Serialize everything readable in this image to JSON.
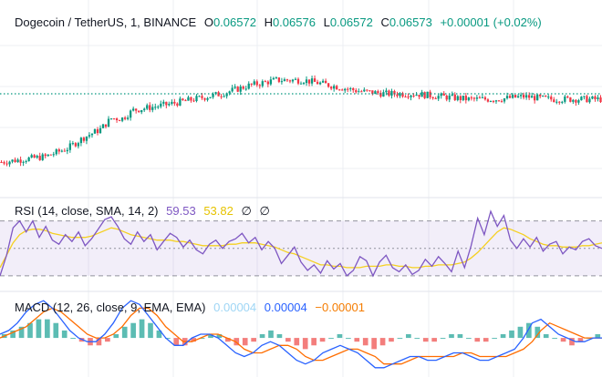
{
  "colors": {
    "up": "#089981",
    "down": "#f23645",
    "rsi": "#7e57c2",
    "rsi_ma": "#f5d020",
    "rsi_band": "#7e57c2",
    "macd": "#2962ff",
    "signal": "#ff6d00",
    "hist_up": "#26a69a",
    "hist_down": "#ef5350",
    "grid": "#eceff3",
    "price_line": "#089981"
  },
  "main_legend": {
    "symbol": "Dogecoin / TetherUS, 1, BINANCE",
    "o_label": "O",
    "o_value": "0.06572",
    "h_label": "H",
    "h_value": "0.06576",
    "l_label": "L",
    "l_value": "0.06572",
    "c_label": "C",
    "c_value": "0.06573",
    "change": "+0.00001 (+0.02%)"
  },
  "rsi_legend": {
    "label": "RSI (14, close, SMA, 14, 2)",
    "rsi_value": "59.53",
    "ma_value": "53.82",
    "v3": "∅",
    "v4": "∅"
  },
  "macd_legend": {
    "label": "MACD (12, 26, close, 9, EMA, EMA)",
    "histogram": "0.00004",
    "macd": "0.00004",
    "signal": "−0.00001"
  },
  "chart_data": [
    {
      "type": "candlestick",
      "series": [
        {
          "name": "Dogecoin / TetherUS",
          "trend": [
            [
              0,
              0.06548
            ],
            [
              8,
              0.06549
            ],
            [
              16,
              0.0655
            ],
            [
              24,
              0.06553
            ],
            [
              30,
              0.06557
            ],
            [
              36,
              0.0656
            ],
            [
              40,
              0.06564
            ],
            [
              44,
              0.06564
            ],
            [
              48,
              0.06567
            ],
            [
              54,
              0.06568
            ],
            [
              60,
              0.06569
            ],
            [
              70,
              0.06571
            ],
            [
              80,
              0.06573
            ],
            [
              90,
              0.06576
            ],
            [
              100,
              0.06578
            ],
            [
              110,
              0.06578
            ],
            [
              120,
              0.06576
            ],
            [
              130,
              0.06574
            ],
            [
              140,
              0.06573
            ],
            [
              150,
              0.06573
            ],
            [
              160,
              0.06572
            ],
            [
              170,
              0.06571
            ],
            [
              180,
              0.06571
            ],
            [
              190,
              0.06572
            ],
            [
              200,
              0.06571
            ],
            [
              210,
              0.06571
            ],
            [
              218,
              0.06571
            ]
          ]
        }
      ],
      "current_price": 0.06573,
      "x_range": [
        0,
        218
      ],
      "y_range": [
        0.06536,
        0.06604
      ],
      "grid": true
    },
    {
      "type": "line",
      "title": "RSI (14, close, SMA, 14, 2)",
      "series": [
        {
          "name": "RSI",
          "values": [
            30,
            45,
            65,
            70,
            62,
            70,
            58,
            66,
            56,
            53,
            60,
            55,
            62,
            52,
            57,
            64,
            71,
            73,
            66,
            57,
            53,
            62,
            55,
            60,
            49,
            55,
            61,
            58,
            51,
            56,
            49,
            46,
            53,
            56,
            50,
            55,
            57,
            61,
            54,
            58,
            49,
            55,
            50,
            39,
            45,
            51,
            40,
            34,
            38,
            32,
            41,
            35,
            39,
            30,
            34,
            44,
            41,
            30,
            40,
            45,
            36,
            33,
            38,
            31,
            34,
            42,
            37,
            44,
            39,
            33,
            48,
            36,
            52,
            72,
            60,
            77,
            66,
            74,
            56,
            50,
            57,
            51,
            58,
            48,
            53,
            55,
            46,
            51,
            49,
            55,
            57,
            52,
            50
          ]
        },
        {
          "name": "RSI-based MA",
          "values": [
            36,
            45,
            54,
            60,
            63,
            64,
            64,
            63,
            61,
            60,
            59,
            58,
            58,
            58,
            59,
            61,
            63,
            65,
            64,
            62,
            60,
            59,
            58,
            57,
            56,
            56,
            56,
            55,
            55,
            54,
            53,
            52,
            52,
            52,
            52,
            53,
            53,
            54,
            54,
            54,
            53,
            52,
            51,
            49,
            47,
            46,
            44,
            42,
            40,
            38,
            38,
            37,
            37,
            36,
            36,
            36,
            37,
            37,
            37,
            38,
            38,
            37,
            37,
            36,
            36,
            37,
            37,
            38,
            38,
            38,
            39,
            40,
            43,
            47,
            52,
            57,
            62,
            65,
            64,
            62,
            60,
            57,
            55,
            53,
            52,
            52,
            51,
            51,
            51,
            52,
            52,
            53,
            54
          ]
        }
      ],
      "y_range": [
        20,
        85
      ],
      "bands": [
        70,
        50,
        30
      ],
      "grid": true
    },
    {
      "type": "line",
      "title": "MACD (12, 26, close, 9, EMA, EMA)",
      "series": [
        {
          "name": "Histogram",
          "values": [
            1,
            2,
            3,
            4,
            5,
            5,
            4,
            2,
            0,
            -1,
            -2,
            -2,
            -1,
            1,
            3,
            4,
            5,
            4,
            2,
            0,
            -2,
            -2,
            -1,
            0,
            1,
            1,
            -1,
            -2,
            -2,
            -1,
            1,
            2,
            1,
            -1,
            -2,
            -3,
            -2,
            -1,
            0,
            1,
            0,
            -1,
            -2,
            -3,
            -2,
            -1,
            0,
            1,
            0,
            -1,
            -1,
            0,
            1,
            1,
            0,
            -1,
            -1,
            0,
            1,
            2,
            3,
            4,
            3,
            1,
            0,
            -1,
            -2,
            -1,
            0,
            1
          ]
        },
        {
          "name": "MACD",
          "values": [
            1,
            2,
            4,
            7,
            9,
            10,
            8,
            5,
            2,
            0,
            -1,
            -1,
            1,
            4,
            8,
            10,
            9,
            6,
            3,
            0,
            -2,
            -2,
            0,
            1,
            1,
            0,
            -2,
            -4,
            -5,
            -4,
            -2,
            -1,
            -2,
            -4,
            -6,
            -7,
            -6,
            -4,
            -3,
            -2,
            -3,
            -4,
            -6,
            -8,
            -8,
            -7,
            -6,
            -5,
            -5,
            -6,
            -6,
            -5,
            -4,
            -4,
            -5,
            -6,
            -6,
            -5,
            -4,
            -3,
            0,
            4,
            5,
            3,
            1,
            0,
            -1,
            -1,
            0,
            0
          ]
        },
        {
          "name": "Signal",
          "values": [
            0,
            1,
            2,
            3,
            5,
            7,
            8,
            7,
            5,
            3,
            1,
            0,
            0,
            1,
            3,
            6,
            8,
            8,
            6,
            3,
            1,
            -1,
            -1,
            0,
            1,
            1,
            0,
            -1,
            -3,
            -4,
            -4,
            -3,
            -2,
            -2,
            -3,
            -5,
            -6,
            -6,
            -5,
            -4,
            -3,
            -3,
            -4,
            -5,
            -7,
            -7,
            -7,
            -6,
            -5,
            -5,
            -5,
            -5,
            -5,
            -4,
            -4,
            -5,
            -5,
            -5,
            -5,
            -4,
            -3,
            -1,
            2,
            4,
            3,
            2,
            1,
            0,
            0,
            0
          ]
        }
      ],
      "y_range": [
        -10,
        12
      ],
      "grid": true
    }
  ]
}
